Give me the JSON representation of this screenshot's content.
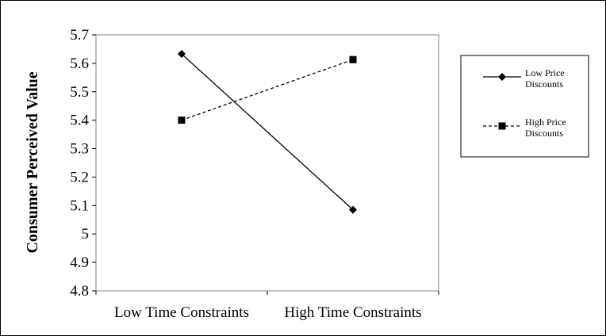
{
  "chart_data": {
    "type": "line",
    "title": "",
    "xlabel": "",
    "ylabel": "Consumer Perceived Value",
    "categories": [
      "Low Time Constraints",
      "High Time Constraints"
    ],
    "ylim": [
      4.8,
      5.7
    ],
    "yticks": [
      "5.7",
      "5.6",
      "5.5",
      "5.4",
      "5.3",
      "5.2",
      "5.1",
      "5",
      "4.9",
      "4.8"
    ],
    "grid": false,
    "legend_position": "right",
    "series": [
      {
        "name": "Low Price Discounts",
        "label_lines": [
          "Low Price",
          "Discounts"
        ],
        "values": [
          5.633,
          5.085
        ],
        "marker": "diamond",
        "line_style": "solid",
        "color": "#000000"
      },
      {
        "name": "High Price Discounts",
        "label_lines": [
          "High Price",
          "Discounts"
        ],
        "values": [
          5.4,
          5.613
        ],
        "marker": "square",
        "line_style": "dashed",
        "color": "#000000"
      }
    ]
  }
}
